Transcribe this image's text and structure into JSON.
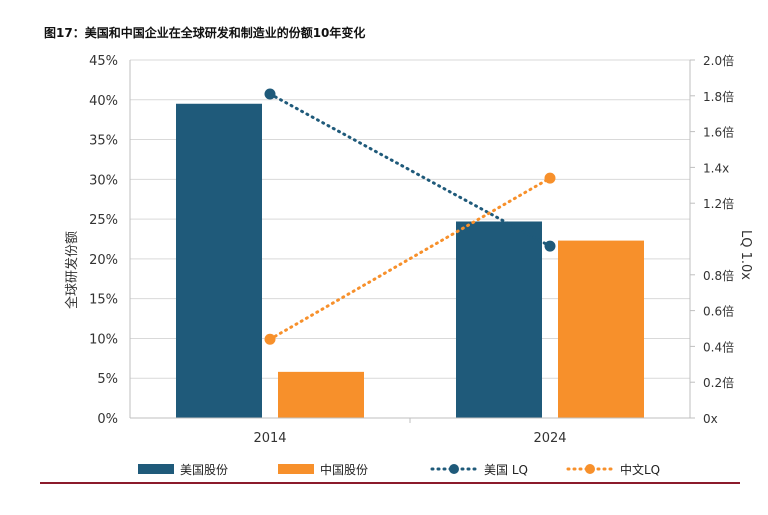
{
  "chart_data": {
    "type": "bar",
    "title": "图17：美国和中国企业在全球研发和制造业的份额10年变化",
    "categories": [
      "2014",
      "2024"
    ],
    "ylabel": "全球研发份额",
    "y2label": "LQ 1.0x",
    "ylim": [
      0,
      45
    ],
    "y2lim": [
      0,
      2.0
    ],
    "y_ticks": [
      "0%",
      "5%",
      "10%",
      "15%",
      "20%",
      "25%",
      "30%",
      "35%",
      "40%",
      "45%"
    ],
    "y2_ticks": [
      {
        "value": 0.0,
        "label": "0x"
      },
      {
        "value": 0.2,
        "label": "0.2倍"
      },
      {
        "value": 0.4,
        "label": "0.4倍"
      },
      {
        "value": 0.6,
        "label": "0.6倍"
      },
      {
        "value": 0.8,
        "label": "0.8倍"
      },
      {
        "value": 1.2,
        "label": "1.2倍"
      },
      {
        "value": 1.4,
        "label": "1.4x"
      },
      {
        "value": 1.6,
        "label": "1.6倍"
      },
      {
        "value": 1.8,
        "label": "1.8倍"
      },
      {
        "value": 2.0,
        "label": "2.0倍"
      }
    ],
    "grid": true,
    "legend_position": "bottom",
    "series": [
      {
        "name": "美国股份",
        "type": "bar",
        "axis": "left",
        "color": "#1f5a7a",
        "values": [
          39.5,
          24.7
        ]
      },
      {
        "name": "中国股份",
        "type": "bar",
        "axis": "left",
        "color": "#f7902b",
        "values": [
          5.8,
          22.3
        ]
      },
      {
        "name": "美国 LQ",
        "type": "line",
        "axis": "right",
        "color": "#1f5a7a",
        "values": [
          1.81,
          0.96
        ]
      },
      {
        "name": "中文LQ",
        "type": "line",
        "axis": "right",
        "color": "#f7902b",
        "values": [
          0.44,
          1.34
        ]
      }
    ],
    "bottom_rule_color": "#8b1a2b"
  }
}
